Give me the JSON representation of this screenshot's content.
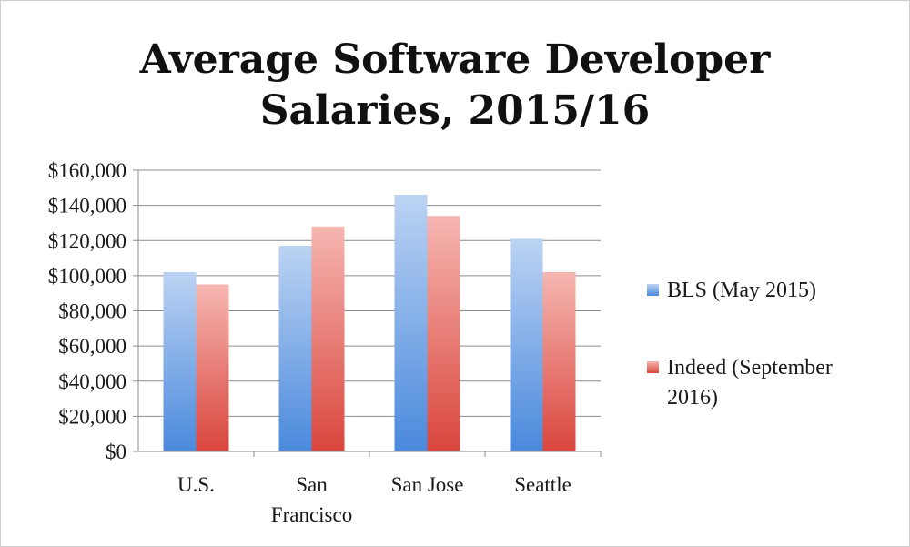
{
  "chart_data": {
    "type": "bar",
    "title_lines": [
      "Average Software Developer",
      "Salaries, 2015/16"
    ],
    "categories": [
      [
        "U.S."
      ],
      [
        "San",
        "Francisco"
      ],
      [
        "San Jose"
      ],
      [
        "Seattle"
      ]
    ],
    "series": [
      {
        "name_lines": [
          "BLS (May 2015)"
        ],
        "values": [
          102000,
          117000,
          146000,
          121000
        ],
        "color_top": "#bcd3f3",
        "color_bottom": "#4a89dc"
      },
      {
        "name_lines": [
          "Indeed (September",
          "2016)"
        ],
        "values": [
          95000,
          128000,
          134000,
          102000
        ],
        "color_top": "#f6b6b1",
        "color_bottom": "#d9463d"
      }
    ],
    "y_ticks": [
      "$0",
      "$20,000",
      "$40,000",
      "$60,000",
      "$80,000",
      "$100,000",
      "$120,000",
      "$140,000",
      "$160,000"
    ],
    "ylim": [
      0,
      160000
    ],
    "grid": true,
    "legend_position": "right"
  }
}
